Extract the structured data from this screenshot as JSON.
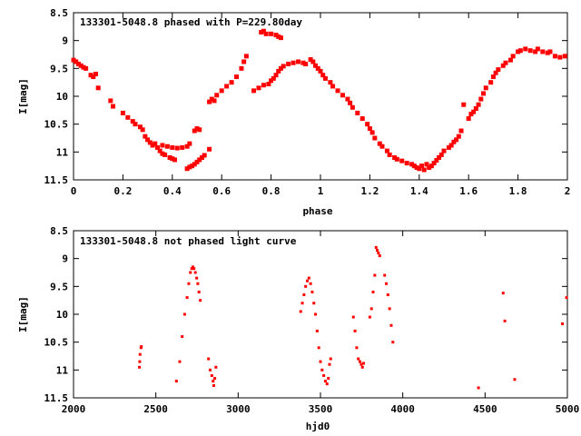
{
  "chart_data": [
    {
      "type": "scatter",
      "title": "133301-5048.8 phased with P=229.80day",
      "xlabel": "phase",
      "ylabel": "I[mag]",
      "xlim": [
        0,
        2
      ],
      "ylim": [
        11.5,
        8.5
      ],
      "y_inverted": true,
      "grid": false,
      "color": "#ff0000",
      "xticks": [
        "0",
        "0.2",
        "0.4",
        "0.6",
        "0.8",
        "1",
        "1.2",
        "1.4",
        "1.6",
        "1.8",
        "2"
      ],
      "yticks": [
        "8.5",
        "9",
        "9.5",
        "10",
        "10.5",
        "11",
        "11.5"
      ],
      "series": [
        {
          "points": [
            [
              0.0,
              9.35
            ],
            [
              0.01,
              9.38
            ],
            [
              0.02,
              9.42
            ],
            [
              0.03,
              9.45
            ],
            [
              0.04,
              9.48
            ],
            [
              0.05,
              9.5
            ],
            [
              0.07,
              9.62
            ],
            [
              0.08,
              9.65
            ],
            [
              0.09,
              9.6
            ],
            [
              0.1,
              9.85
            ],
            [
              0.15,
              10.08
            ],
            [
              0.16,
              10.18
            ],
            [
              0.2,
              10.3
            ],
            [
              0.22,
              10.38
            ],
            [
              0.24,
              10.45
            ],
            [
              0.25,
              10.5
            ],
            [
              0.27,
              10.55
            ],
            [
              0.28,
              10.6
            ],
            [
              0.29,
              10.72
            ],
            [
              0.3,
              10.78
            ],
            [
              0.31,
              10.83
            ],
            [
              0.32,
              10.88
            ],
            [
              0.33,
              10.85
            ],
            [
              0.34,
              10.92
            ],
            [
              0.35,
              10.98
            ],
            [
              0.36,
              11.03
            ],
            [
              0.37,
              11.05
            ],
            [
              0.39,
              11.1
            ],
            [
              0.4,
              11.12
            ],
            [
              0.41,
              11.14
            ],
            [
              0.36,
              10.88
            ],
            [
              0.38,
              10.9
            ],
            [
              0.4,
              10.92
            ],
            [
              0.42,
              10.93
            ],
            [
              0.44,
              10.92
            ],
            [
              0.46,
              10.9
            ],
            [
              0.47,
              10.85
            ],
            [
              0.49,
              10.62
            ],
            [
              0.5,
              10.58
            ],
            [
              0.51,
              10.6
            ],
            [
              0.55,
              10.95
            ],
            [
              0.46,
              11.3
            ],
            [
              0.47,
              11.27
            ],
            [
              0.48,
              11.25
            ],
            [
              0.49,
              11.22
            ],
            [
              0.5,
              11.18
            ],
            [
              0.51,
              11.14
            ],
            [
              0.52,
              11.1
            ],
            [
              0.53,
              11.06
            ],
            [
              0.55,
              10.1
            ],
            [
              0.56,
              10.05
            ],
            [
              0.57,
              10.08
            ],
            [
              0.58,
              9.98
            ],
            [
              0.6,
              9.9
            ],
            [
              0.62,
              9.82
            ],
            [
              0.64,
              9.75
            ],
            [
              0.66,
              9.65
            ],
            [
              0.68,
              9.5
            ],
            [
              0.69,
              9.38
            ],
            [
              0.7,
              9.28
            ],
            [
              0.76,
              8.85
            ],
            [
              0.77,
              8.83
            ],
            [
              0.78,
              8.88
            ],
            [
              0.8,
              8.88
            ],
            [
              0.82,
              8.9
            ],
            [
              0.83,
              8.93
            ],
            [
              0.84,
              8.95
            ],
            [
              0.73,
              9.9
            ],
            [
              0.75,
              9.85
            ],
            [
              0.77,
              9.8
            ],
            [
              0.79,
              9.78
            ],
            [
              0.8,
              9.72
            ],
            [
              0.81,
              9.68
            ],
            [
              0.82,
              9.62
            ],
            [
              0.83,
              9.55
            ],
            [
              0.84,
              9.5
            ],
            [
              0.85,
              9.46
            ],
            [
              0.87,
              9.42
            ],
            [
              0.89,
              9.4
            ],
            [
              0.91,
              9.38
            ],
            [
              0.93,
              9.4
            ],
            [
              0.94,
              9.42
            ],
            [
              0.96,
              9.34
            ],
            [
              0.97,
              9.38
            ],
            [
              0.98,
              9.45
            ],
            [
              0.99,
              9.5
            ],
            [
              1.0,
              9.55
            ],
            [
              1.01,
              9.62
            ],
            [
              1.02,
              9.68
            ],
            [
              1.04,
              9.75
            ],
            [
              1.05,
              9.82
            ],
            [
              1.07,
              9.9
            ],
            [
              1.09,
              9.98
            ],
            [
              1.11,
              10.05
            ],
            [
              1.12,
              10.12
            ],
            [
              1.13,
              10.2
            ],
            [
              1.15,
              10.3
            ],
            [
              1.17,
              10.4
            ],
            [
              1.19,
              10.5
            ],
            [
              1.2,
              10.58
            ],
            [
              1.21,
              10.65
            ],
            [
              1.22,
              10.75
            ],
            [
              1.24,
              10.85
            ],
            [
              1.25,
              10.9
            ],
            [
              1.27,
              10.98
            ],
            [
              1.28,
              11.05
            ],
            [
              1.3,
              11.1
            ],
            [
              1.31,
              11.13
            ],
            [
              1.33,
              11.16
            ],
            [
              1.35,
              11.2
            ],
            [
              1.37,
              11.22
            ],
            [
              1.38,
              11.25
            ],
            [
              1.39,
              11.28
            ],
            [
              1.4,
              11.3
            ],
            [
              1.41,
              11.25
            ],
            [
              1.42,
              11.32
            ],
            [
              1.43,
              11.22
            ],
            [
              1.44,
              11.28
            ],
            [
              1.45,
              11.25
            ],
            [
              1.46,
              11.2
            ],
            [
              1.47,
              11.15
            ],
            [
              1.48,
              11.1
            ],
            [
              1.49,
              11.05
            ],
            [
              1.5,
              10.98
            ],
            [
              1.52,
              10.92
            ],
            [
              1.53,
              10.88
            ],
            [
              1.54,
              10.82
            ],
            [
              1.55,
              10.78
            ],
            [
              1.56,
              10.72
            ],
            [
              1.57,
              10.62
            ],
            [
              1.58,
              10.15
            ],
            [
              1.6,
              10.4
            ],
            [
              1.61,
              10.32
            ],
            [
              1.62,
              10.28
            ],
            [
              1.63,
              10.22
            ],
            [
              1.64,
              10.15
            ],
            [
              1.65,
              10.05
            ],
            [
              1.66,
              9.95
            ],
            [
              1.67,
              9.85
            ],
            [
              1.69,
              9.75
            ],
            [
              1.7,
              9.65
            ],
            [
              1.71,
              9.58
            ],
            [
              1.72,
              9.52
            ],
            [
              1.74,
              9.45
            ],
            [
              1.75,
              9.4
            ],
            [
              1.77,
              9.35
            ],
            [
              1.78,
              9.28
            ],
            [
              1.8,
              9.2
            ],
            [
              1.81,
              9.18
            ],
            [
              1.83,
              9.15
            ],
            [
              1.85,
              9.18
            ],
            [
              1.87,
              9.2
            ],
            [
              1.88,
              9.15
            ],
            [
              1.9,
              9.2
            ],
            [
              1.92,
              9.22
            ],
            [
              1.93,
              9.2
            ],
            [
              1.95,
              9.28
            ],
            [
              1.97,
              9.3
            ],
            [
              1.99,
              9.28
            ]
          ]
        }
      ]
    },
    {
      "type": "scatter",
      "title": "133301-5048.8 not phased light curve",
      "xlabel": "hjd0",
      "ylabel": "I[mag]",
      "xlim": [
        2000,
        5000
      ],
      "ylim": [
        11.5,
        8.5
      ],
      "y_inverted": true,
      "grid": false,
      "color": "#ff0000",
      "xticks": [
        "2000",
        "2500",
        "3000",
        "3500",
        "4000",
        "4500",
        "5000"
      ],
      "yticks": [
        "8.5",
        "9",
        "9.5",
        "10",
        "10.5",
        "11",
        "11.5"
      ],
      "series": [
        {
          "points": [
            [
              2400,
              10.95
            ],
            [
              2402,
              10.85
            ],
            [
              2404,
              10.72
            ],
            [
              2410,
              10.6
            ],
            [
              2412,
              10.58
            ],
            [
              2625,
              11.2
            ],
            [
              2645,
              10.85
            ],
            [
              2660,
              10.4
            ],
            [
              2675,
              10.0
            ],
            [
              2690,
              9.7
            ],
            [
              2700,
              9.45
            ],
            [
              2710,
              9.25
            ],
            [
              2718,
              9.18
            ],
            [
              2725,
              9.15
            ],
            [
              2732,
              9.18
            ],
            [
              2740,
              9.25
            ],
            [
              2748,
              9.35
            ],
            [
              2755,
              9.45
            ],
            [
              2762,
              9.6
            ],
            [
              2770,
              9.75
            ],
            [
              2820,
              10.8
            ],
            [
              2830,
              11.0
            ],
            [
              2840,
              11.1
            ],
            [
              2848,
              11.2
            ],
            [
              2852,
              11.28
            ],
            [
              2858,
              11.15
            ],
            [
              2865,
              10.95
            ],
            [
              3380,
              9.95
            ],
            [
              3390,
              9.8
            ],
            [
              3400,
              9.65
            ],
            [
              3410,
              9.5
            ],
            [
              3420,
              9.4
            ],
            [
              3430,
              9.35
            ],
            [
              3440,
              9.45
            ],
            [
              3450,
              9.6
            ],
            [
              3460,
              9.8
            ],
            [
              3470,
              10.0
            ],
            [
              3480,
              10.3
            ],
            [
              3490,
              10.6
            ],
            [
              3500,
              10.85
            ],
            [
              3510,
              11.0
            ],
            [
              3520,
              11.1
            ],
            [
              3530,
              11.2
            ],
            [
              3540,
              11.25
            ],
            [
              3548,
              11.15
            ],
            [
              3555,
              10.9
            ],
            [
              3562,
              10.8
            ],
            [
              3700,
              10.05
            ],
            [
              3710,
              10.3
            ],
            [
              3720,
              10.6
            ],
            [
              3730,
              10.8
            ],
            [
              3740,
              10.85
            ],
            [
              3748,
              10.9
            ],
            [
              3755,
              10.95
            ],
            [
              3762,
              10.88
            ],
            [
              3800,
              10.05
            ],
            [
              3810,
              9.9
            ],
            [
              3820,
              9.6
            ],
            [
              3830,
              9.3
            ],
            [
              3838,
              8.8
            ],
            [
              3845,
              8.85
            ],
            [
              3852,
              8.9
            ],
            [
              3860,
              8.95
            ],
            [
              3890,
              9.3
            ],
            [
              3900,
              9.45
            ],
            [
              3910,
              9.65
            ],
            [
              3920,
              9.9
            ],
            [
              3930,
              10.2
            ],
            [
              3940,
              10.5
            ],
            [
              4460,
              11.32
            ],
            [
              4610,
              9.62
            ],
            [
              4620,
              10.12
            ],
            [
              4680,
              11.17
            ],
            [
              4970,
              10.17
            ],
            [
              4995,
              9.7
            ]
          ]
        }
      ]
    }
  ]
}
